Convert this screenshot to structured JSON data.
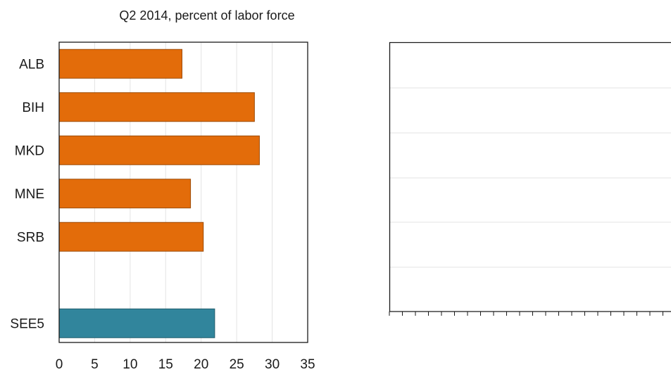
{
  "chart_data": [
    {
      "type": "bar",
      "orientation": "horizontal",
      "title": "Q2 2014, percent of labor force",
      "categories": [
        "ALB",
        "BIH",
        "MKD",
        "MNE",
        "SRB",
        "",
        "SEE5"
      ],
      "values": [
        17.3,
        27.5,
        28.2,
        18.5,
        20.3,
        null,
        21.9
      ],
      "bar_colors": [
        "#E36C0A",
        "#E36C0A",
        "#E36C0A",
        "#E36C0A",
        "#E36C0A",
        null,
        "#31859C"
      ],
      "xlim": [
        0,
        35
      ],
      "x_ticks": [
        0,
        5,
        10,
        15,
        20,
        25,
        30,
        35
      ],
      "grid": true
    },
    {
      "type": "line",
      "title": "",
      "series": [],
      "grid": true
    }
  ],
  "colors": {
    "country_bar": "#E36C0A",
    "country_bar_edge": "#9C4A06",
    "aggregate_bar": "#31859C",
    "aggregate_bar_edge": "#215C6B",
    "gridline": "#E3E3E3",
    "axis": "#1A1A1A"
  }
}
